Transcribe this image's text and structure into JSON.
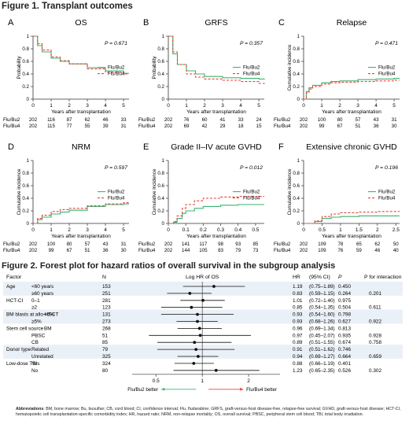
{
  "figure1": {
    "title": "Figure 1. Transplant outcomes",
    "xlabel": "Years after transplantation",
    "risk_labels": [
      "Flu/Bu2",
      "Flu/Bu4"
    ],
    "colors": {
      "bu2": "#3cb371",
      "bu4": "#e8433a",
      "axis": "#333333"
    }
  },
  "chart_data": [
    {
      "letter": "A",
      "title": "OS",
      "type": "line",
      "ylabel": "Probability",
      "pvalue": "P = 0.671",
      "legend": [
        "Flu/Bu2",
        "Flu/Bu4"
      ],
      "legend_pos": "right-middle",
      "xlim": [
        0,
        5.3
      ],
      "ylim": [
        0,
        1
      ],
      "xticks": [
        0,
        1,
        2,
        3,
        4,
        5
      ],
      "yticks": [
        0,
        0.2,
        0.4,
        0.6,
        0.8,
        1
      ],
      "series": [
        {
          "name": "Flu/Bu2",
          "x": [
            0,
            0.25,
            0.5,
            1,
            1.5,
            2,
            3,
            4,
            5,
            5.3
          ],
          "y": [
            1,
            0.85,
            0.75,
            0.65,
            0.6,
            0.56,
            0.5,
            0.45,
            0.41,
            0.41
          ]
        },
        {
          "name": "Flu/Bu4",
          "x": [
            0,
            0.25,
            0.5,
            1,
            1.5,
            2,
            3,
            4,
            5,
            5.3
          ],
          "y": [
            1,
            0.88,
            0.78,
            0.67,
            0.61,
            0.56,
            0.48,
            0.43,
            0.4,
            0.4
          ]
        }
      ],
      "risk": {
        "x": [
          0,
          1,
          2,
          3,
          4,
          5
        ],
        "rows": [
          [
            "202",
            "116",
            "87",
            "62",
            "46",
            "33"
          ],
          [
            "202",
            "115",
            "77",
            "55",
            "39",
            "31"
          ]
        ]
      }
    },
    {
      "letter": "B",
      "title": "GRFS",
      "type": "line",
      "ylabel": "Probability",
      "pvalue": "P = 0.357",
      "legend": [
        "Flu/Bu2",
        "Flu/Bu4"
      ],
      "legend_pos": "right-middle",
      "xlim": [
        0,
        5.3
      ],
      "ylim": [
        0,
        1
      ],
      "xticks": [
        0,
        1,
        2,
        3,
        4,
        5
      ],
      "yticks": [
        0,
        0.2,
        0.4,
        0.6,
        0.8,
        1
      ],
      "series": [
        {
          "name": "Flu/Bu2",
          "x": [
            0,
            0.25,
            0.5,
            1,
            1.5,
            2,
            3,
            4,
            5,
            5.3
          ],
          "y": [
            1,
            0.72,
            0.55,
            0.45,
            0.4,
            0.36,
            0.34,
            0.33,
            0.32,
            0.31
          ]
        },
        {
          "name": "Flu/Bu4",
          "x": [
            0,
            0.25,
            0.5,
            1,
            1.5,
            2,
            3,
            4,
            5,
            5.3
          ],
          "y": [
            1,
            0.75,
            0.55,
            0.4,
            0.35,
            0.32,
            0.3,
            0.28,
            0.25,
            0.24
          ]
        }
      ],
      "risk": {
        "x": [
          0,
          1,
          2,
          3,
          4,
          5
        ],
        "rows": [
          [
            "202",
            "76",
            "60",
            "41",
            "33",
            "24"
          ],
          [
            "202",
            "69",
            "42",
            "29",
            "18",
            "15"
          ]
        ]
      }
    },
    {
      "letter": "C",
      "title": "Relapse",
      "type": "line",
      "ylabel": "Cumulative incidence",
      "pvalue": "P = 0.471",
      "legend": [
        "Flu/Bu2",
        "Flu/Bu4"
      ],
      "legend_pos": "right-middle",
      "xlim": [
        0,
        5.3
      ],
      "ylim": [
        0,
        1
      ],
      "xticks": [
        0,
        1,
        2,
        3,
        4,
        5
      ],
      "yticks": [
        0,
        0.2,
        0.4,
        0.6,
        0.8,
        1
      ],
      "series": [
        {
          "name": "Flu/Bu2",
          "x": [
            0,
            0.15,
            0.3,
            0.5,
            1,
            1.5,
            2,
            3,
            4,
            5,
            5.3
          ],
          "y": [
            0,
            0.12,
            0.18,
            0.22,
            0.26,
            0.28,
            0.29,
            0.31,
            0.32,
            0.33,
            0.33
          ]
        },
        {
          "name": "Flu/Bu4",
          "x": [
            0,
            0.15,
            0.3,
            0.5,
            1,
            1.5,
            2,
            3,
            4,
            5,
            5.3
          ],
          "y": [
            0,
            0.1,
            0.16,
            0.2,
            0.24,
            0.26,
            0.27,
            0.28,
            0.29,
            0.3,
            0.3
          ]
        }
      ],
      "risk": {
        "x": [
          0,
          1,
          2,
          3,
          4,
          5
        ],
        "rows": [
          [
            "202",
            "100",
            "80",
            "57",
            "43",
            "31"
          ],
          [
            "202",
            "99",
            "67",
            "51",
            "36",
            "30"
          ]
        ]
      }
    },
    {
      "letter": "D",
      "title": "NRM",
      "type": "line",
      "ylabel": "Cumulative incidence",
      "pvalue": "P = 0.597",
      "legend": [
        "Flu/Bu2",
        "Flu/Bu4"
      ],
      "legend_pos": "right-middle",
      "xlim": [
        0,
        5.3
      ],
      "ylim": [
        0,
        1
      ],
      "xticks": [
        0,
        1,
        2,
        3,
        4,
        5
      ],
      "yticks": [
        0,
        0.2,
        0.4,
        0.6,
        0.8,
        1
      ],
      "series": [
        {
          "name": "Flu/Bu2",
          "x": [
            0,
            0.25,
            0.5,
            1,
            1.5,
            2,
            3,
            4,
            5,
            5.3
          ],
          "y": [
            0,
            0.06,
            0.1,
            0.15,
            0.18,
            0.21,
            0.27,
            0.3,
            0.31,
            0.31
          ]
        },
        {
          "name": "Flu/Bu4",
          "x": [
            0,
            0.25,
            0.5,
            1,
            1.5,
            2,
            3,
            4,
            5,
            5.3
          ],
          "y": [
            0,
            0.08,
            0.13,
            0.19,
            0.22,
            0.24,
            0.28,
            0.31,
            0.33,
            0.33
          ]
        }
      ],
      "risk": {
        "x": [
          0,
          1,
          2,
          3,
          4,
          5
        ],
        "rows": [
          [
            "202",
            "100",
            "80",
            "57",
            "43",
            "31"
          ],
          [
            "202",
            "99",
            "67",
            "51",
            "36",
            "30"
          ]
        ]
      }
    },
    {
      "letter": "E",
      "title": "Grade II–IV acute GVHD",
      "type": "line",
      "ylabel": "Cumulative incidence",
      "pvalue": "P = 0.012",
      "legend": [
        "Flu/Bu2",
        "Flu/Bu4"
      ],
      "legend_pos": "right-middle",
      "xlim": [
        0,
        0.55
      ],
      "ylim": [
        0,
        1
      ],
      "xticks": [
        0,
        0.1,
        0.2,
        0.3,
        0.4,
        0.5
      ],
      "yticks": [
        0,
        0.2,
        0.4,
        0.6,
        0.8,
        1
      ],
      "series": [
        {
          "name": "Flu/Bu2",
          "x": [
            0,
            0.03,
            0.05,
            0.08,
            0.1,
            0.15,
            0.2,
            0.3,
            0.4,
            0.5,
            0.55
          ],
          "y": [
            0,
            0.02,
            0.08,
            0.16,
            0.2,
            0.24,
            0.27,
            0.29,
            0.3,
            0.3,
            0.3
          ]
        },
        {
          "name": "Flu/Bu4",
          "x": [
            0,
            0.03,
            0.05,
            0.08,
            0.1,
            0.15,
            0.2,
            0.3,
            0.4,
            0.5,
            0.55
          ],
          "y": [
            0,
            0.03,
            0.12,
            0.24,
            0.3,
            0.36,
            0.4,
            0.42,
            0.43,
            0.43,
            0.43
          ]
        }
      ],
      "risk": {
        "x": [
          0,
          0.1,
          0.2,
          0.3,
          0.4,
          0.5
        ],
        "rows": [
          [
            "202",
            "141",
            "117",
            "98",
            "93",
            "85"
          ],
          [
            "202",
            "144",
            "105",
            "83",
            "79",
            "73"
          ]
        ]
      }
    },
    {
      "letter": "F",
      "title": "Extensive chronic GVHD",
      "type": "line",
      "ylabel": "Cumulative incidence",
      "pvalue": "P = 0.196",
      "legend": [
        "Flu/Bu2",
        "Flu/Bu4"
      ],
      "legend_pos": "right-middle",
      "xlim": [
        0,
        2.6
      ],
      "ylim": [
        0,
        1
      ],
      "xticks": [
        0,
        0.5,
        1,
        1.5,
        2,
        2.5
      ],
      "yticks": [
        0,
        0.2,
        0.4,
        0.6,
        0.8,
        1
      ],
      "series": [
        {
          "name": "Flu/Bu2",
          "x": [
            0,
            0.2,
            0.3,
            0.5,
            0.75,
            1,
            1.5,
            2,
            2.5,
            2.6
          ],
          "y": [
            0,
            0,
            0.03,
            0.08,
            0.1,
            0.11,
            0.12,
            0.12,
            0.12,
            0.12
          ]
        },
        {
          "name": "Flu/Bu4",
          "x": [
            0,
            0.2,
            0.3,
            0.5,
            0.75,
            1,
            1.5,
            2,
            2.5,
            2.6
          ],
          "y": [
            0,
            0,
            0.04,
            0.11,
            0.15,
            0.17,
            0.18,
            0.19,
            0.19,
            0.19
          ]
        }
      ],
      "risk": {
        "x": [
          0,
          0.5,
          1,
          1.5,
          2,
          2.5
        ],
        "rows": [
          [
            "202",
            "109",
            "78",
            "65",
            "62",
            "50"
          ],
          [
            "202",
            "109",
            "76",
            "59",
            "46",
            "40"
          ]
        ]
      }
    },
    {
      "type": "forest",
      "title": "Figure 2. Forest plot for hazard ratios of overall survival in the subgroup analysis",
      "headers": {
        "factor": "Factor",
        "n": "N",
        "axis": "Log HR of OS",
        "hr": "HR",
        "ci": "(95% CI)",
        "p": "P",
        "pint": "P for interaction"
      },
      "xscale": "log",
      "xlim": [
        0.35,
        3.2
      ],
      "xticks": [
        "0.5",
        "1",
        "2"
      ],
      "favor_left": "Flu/Bu2 better",
      "favor_right": "Flu/Bu4 better",
      "rows": [
        {
          "group": "Age",
          "sub": "<60 years",
          "n": "153",
          "hr": 1.19,
          "lo": 0.75,
          "hi": 1.89,
          "hr_text": "1.19",
          "ci": "(0.75–1.89)",
          "p": "0.450",
          "pint": ""
        },
        {
          "group": "",
          "sub": "≥60 years",
          "n": "251",
          "hr": 0.83,
          "lo": 0.59,
          "hi": 1.15,
          "hr_text": "0.83",
          "ci": "(0.59–1.15)",
          "p": "0.264",
          "pint": "0.201"
        },
        {
          "group": "HCT-CI",
          "sub": "0–1",
          "n": "281",
          "hr": 1.01,
          "lo": 0.72,
          "hi": 1.4,
          "hr_text": "1.01",
          "ci": "(0.72–1.40)",
          "p": "0.975",
          "pint": ""
        },
        {
          "group": "",
          "sub": "≥2",
          "n": "123",
          "hr": 0.85,
          "lo": 0.54,
          "hi": 1.35,
          "hr_text": "0.85",
          "ci": "(0.54–1.35)",
          "p": "0.504",
          "pint": "0.611"
        },
        {
          "group": "BM blasts at allo-HSCT",
          "sub": "<5%",
          "n": "131",
          "hr": 0.93,
          "lo": 0.54,
          "hi": 1.6,
          "hr_text": "0.93",
          "ci": "(0.54–1.60)",
          "p": "0.798",
          "pint": ""
        },
        {
          "group": "",
          "sub": "≥5%",
          "n": "273",
          "hr": 0.93,
          "lo": 0.68,
          "hi": 1.26,
          "hr_text": "0.93",
          "ci": "(0.68–1.26)",
          "p": "0.627",
          "pint": "0.922"
        },
        {
          "group": "Stem cell source",
          "sub": "BM",
          "n": "268",
          "hr": 0.96,
          "lo": 0.69,
          "hi": 1.34,
          "hr_text": "0.96",
          "ci": "(0.69–1.34)",
          "p": "0.813",
          "pint": ""
        },
        {
          "group": "",
          "sub": "PBSC",
          "n": "51",
          "hr": 0.97,
          "lo": 0.45,
          "hi": 2.07,
          "hr_text": "0.97",
          "ci": "(0.45–2.07)",
          "p": "0.935",
          "pint": "0.928"
        },
        {
          "group": "",
          "sub": "CB",
          "n": "85",
          "hr": 0.89,
          "lo": 0.51,
          "hi": 1.55,
          "hr_text": "0.89",
          "ci": "(0.51–1.55)",
          "p": "0.674",
          "pint": "0.758"
        },
        {
          "group": "Donor type",
          "sub": "Related",
          "n": "79",
          "hr": 0.91,
          "lo": 0.51,
          "hi": 1.62,
          "hr_text": "0.91",
          "ci": "(0.51–1.62)",
          "p": "0.746",
          "pint": ""
        },
        {
          "group": "",
          "sub": "Unrelated",
          "n": "325",
          "hr": 0.94,
          "lo": 0.69,
          "hi": 1.27,
          "hr_text": "0.94",
          "ci": "(0.69–1.27)",
          "p": "0.664",
          "pint": "0.659"
        },
        {
          "group": "Low-dose TBI",
          "sub": "Yes",
          "n": "324",
          "hr": 0.88,
          "lo": 0.66,
          "hi": 1.19,
          "hr_text": "0.88",
          "ci": "(0.66–1.19)",
          "p": "0.401",
          "pint": ""
        },
        {
          "group": "",
          "sub": "No",
          "n": "80",
          "hr": 1.23,
          "lo": 0.65,
          "hi": 2.35,
          "hr_text": "1.23",
          "ci": "(0.65–2.35)",
          "p": "0.526",
          "pint": "0.302"
        }
      ]
    }
  ],
  "abbreviations": {
    "label": "Abbreviations",
    "text": ": BM, bone marrow; Bu, busulfan; CB, cord blood; CI, confidence interval; Flu, fludarabine; GRFS, graft-versus-host disease-free, relapse-free survival; GVHD, graft-versus-host disease; HCT-CI, hematopoietic cell transplantation-specific comorbidity index; HR, hazard ratio; NRM, non-relapse mortality; OS, overall survival; PBSC, peripheral stem cell blood; TBI, total body irradiation."
  }
}
